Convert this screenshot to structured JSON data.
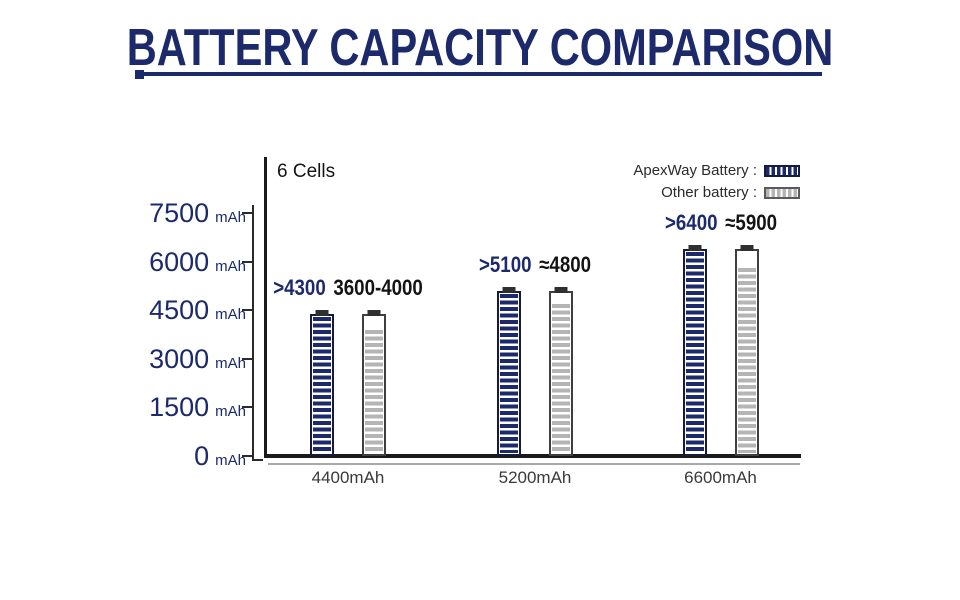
{
  "title": {
    "text": "BATTERY CAPACITY COMPARISON"
  },
  "note": "6 Cells",
  "legend": {
    "rows": [
      {
        "label": "ApexWay Battery :"
      },
      {
        "label": "Other battery :"
      }
    ]
  },
  "colors": {
    "navy": "#1c2a6b",
    "gray": "#b5b5b5",
    "axis": "#1a1a1a",
    "sub_axis": "#a8a8a8",
    "black_text": "#141414"
  },
  "chart_data": {
    "type": "bar",
    "title": "BATTERY CAPACITY COMPARISON",
    "subtitle": "6 Cells",
    "categories": [
      "4400mAh",
      "5200mAh",
      "6600mAh"
    ],
    "series": [
      {
        "name": "ApexWay Battery",
        "values": [
          4400,
          5100,
          6400
        ],
        "data_labels": [
          ">4300",
          ">5100",
          ">6400"
        ],
        "color": "#1c2a6b",
        "style": "striped-battery"
      },
      {
        "name": "Other battery",
        "values": [
          4000,
          4800,
          5900
        ],
        "data_labels": [
          "3600-4000",
          "≈4800",
          "≈5900"
        ],
        "color": "#b5b5b5",
        "style": "striped-battery"
      }
    ],
    "ylabel": "mAh",
    "yticks": [
      0,
      1500,
      3000,
      4500,
      6000,
      7500
    ],
    "ytick_unit": "mAh",
    "ylim": [
      0,
      7750
    ],
    "xlabel": "",
    "grid": false,
    "legend_position": "top-right"
  }
}
